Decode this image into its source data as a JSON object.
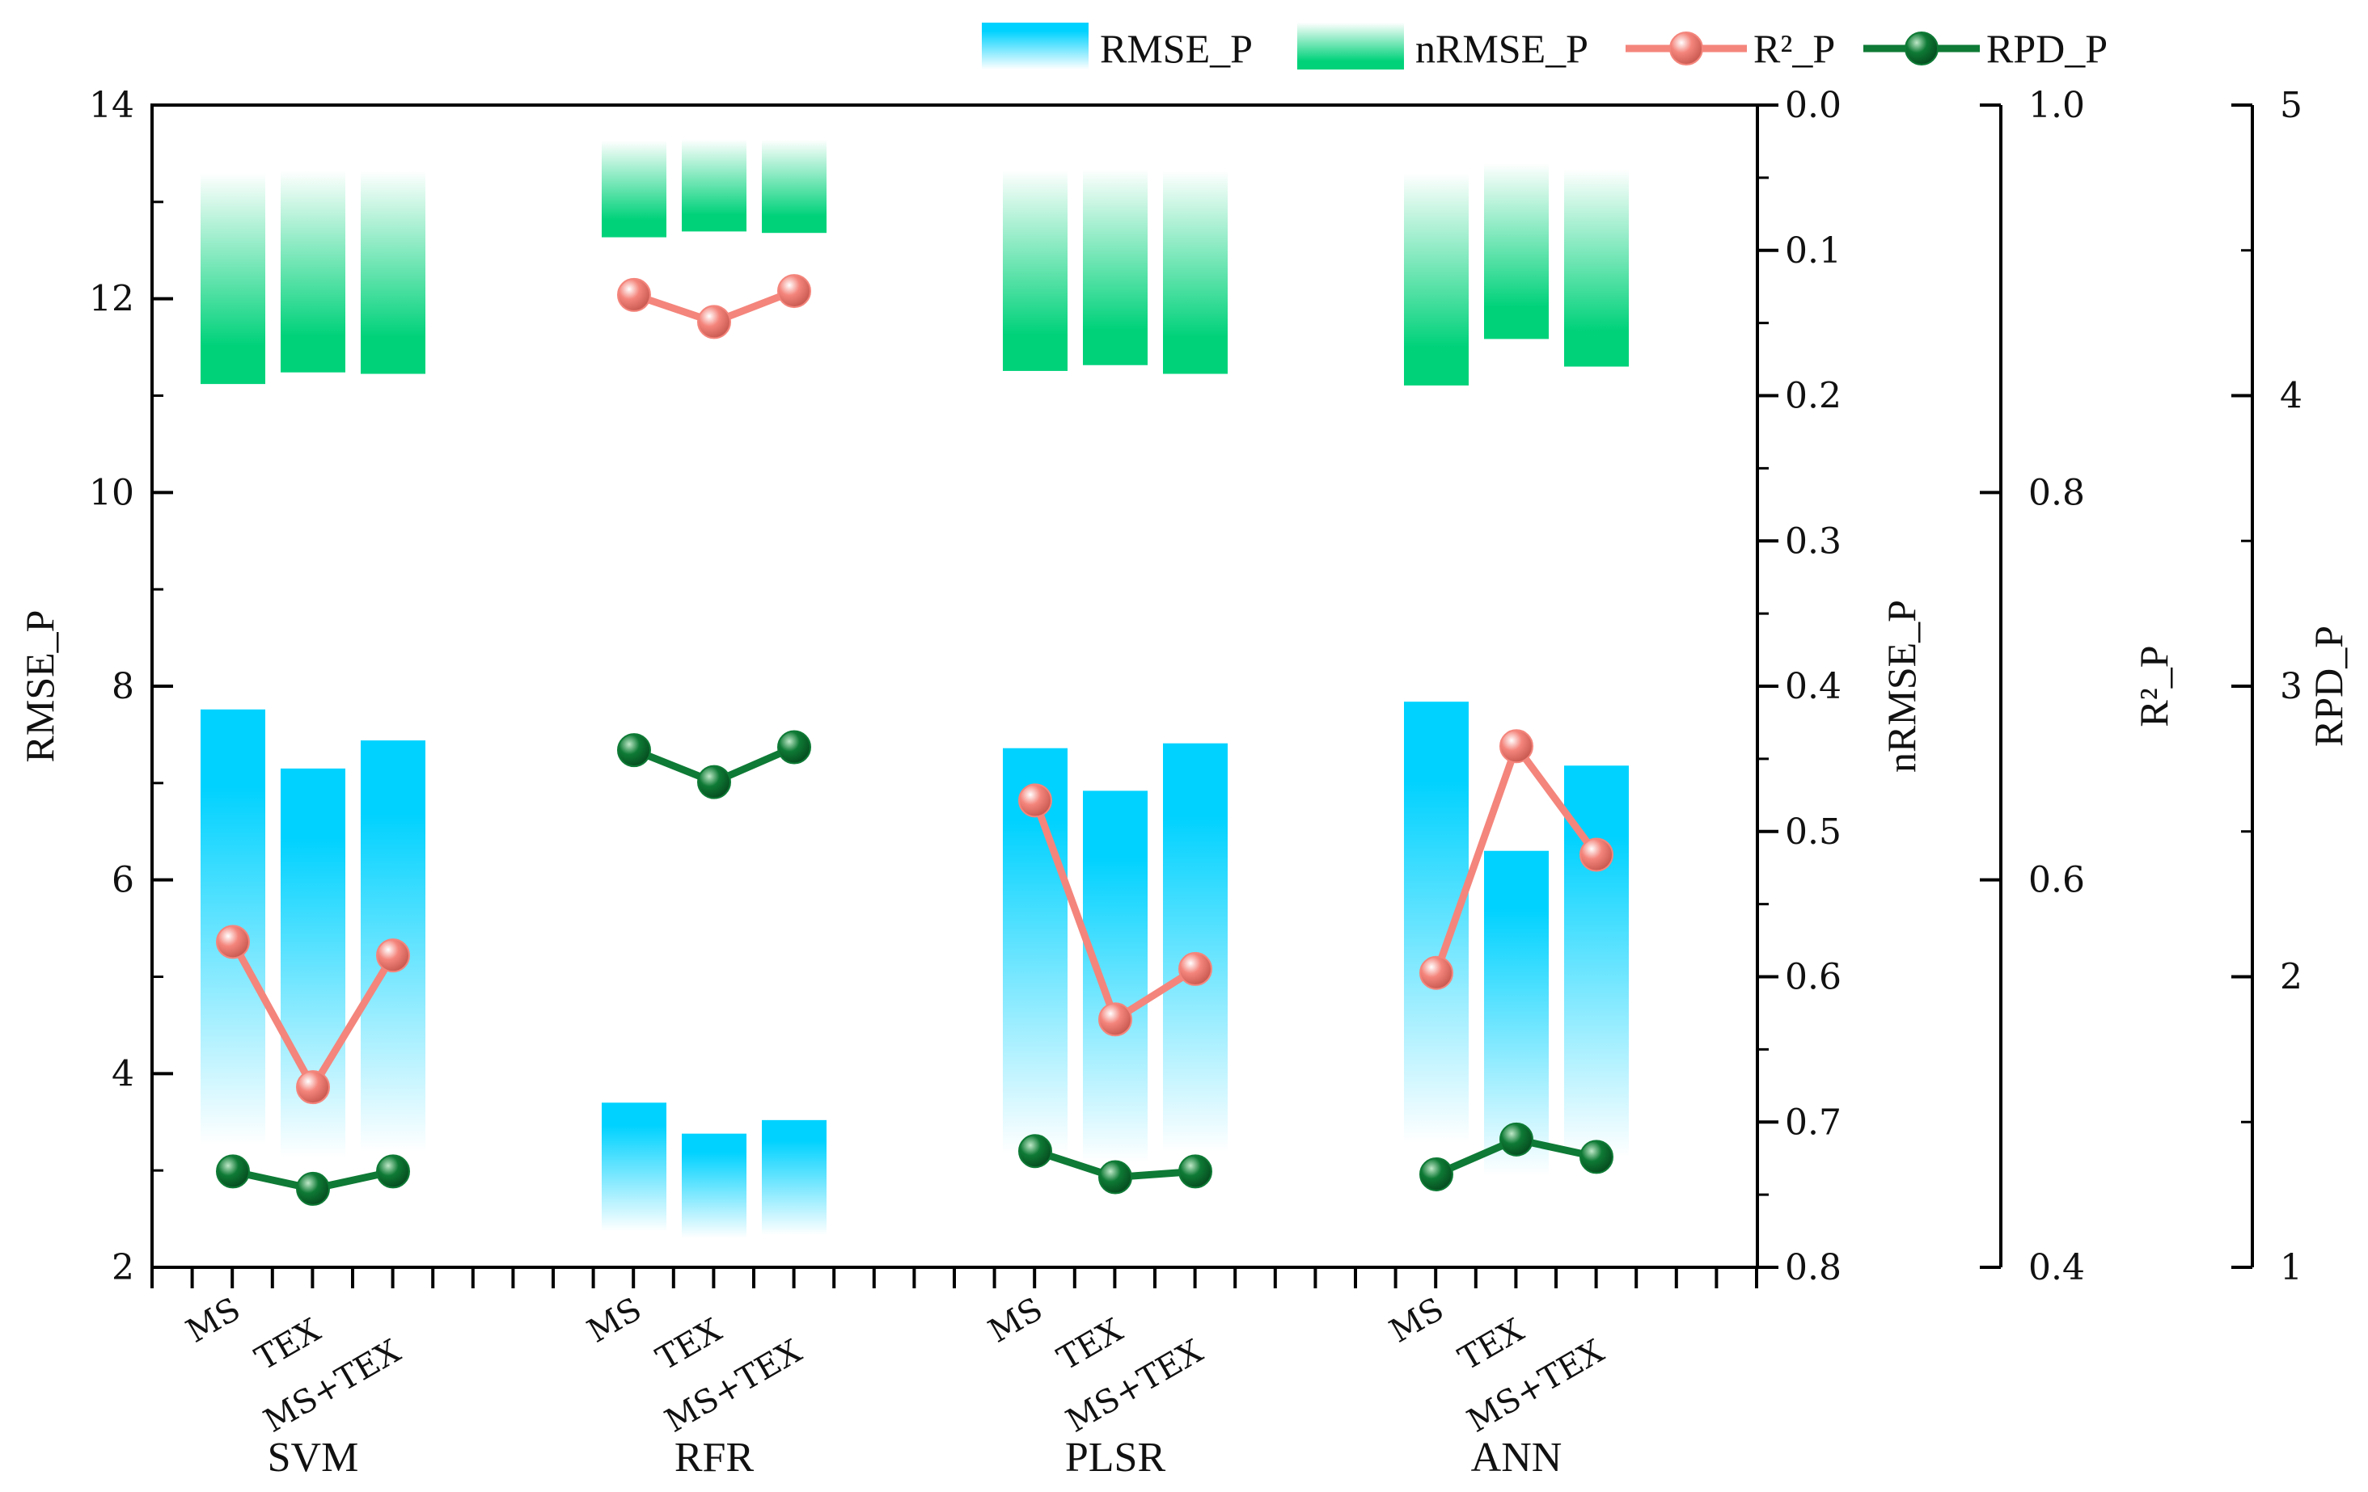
{
  "chart_data": {
    "type": "bar",
    "groups": [
      "SVM",
      "RFR",
      "PLSR",
      "ANN"
    ],
    "subcategories": [
      "MS",
      "TEX",
      "MS+TEX"
    ],
    "series": [
      {
        "name": "RMSE_P",
        "axis": "left",
        "kind": "bar",
        "values": [
          [
            7.76,
            7.15,
            7.44
          ],
          [
            3.7,
            3.38,
            3.52
          ],
          [
            7.36,
            6.92,
            7.41
          ],
          [
            7.84,
            6.3,
            7.18
          ]
        ]
      },
      {
        "name": "nRMSE_P",
        "axis": "nrmse",
        "kind": "bar",
        "values": [
          [
            0.192,
            0.184,
            0.185
          ],
          [
            0.091,
            0.087,
            0.088
          ],
          [
            0.183,
            0.179,
            0.185
          ],
          [
            0.193,
            0.161,
            0.18
          ]
        ]
      },
      {
        "name": "R²_P",
        "axis": "r2",
        "kind": "line",
        "values": [
          [
            0.568,
            0.493,
            0.561
          ],
          [
            0.902,
            0.888,
            0.904
          ],
          [
            0.641,
            0.528,
            0.554
          ],
          [
            0.552,
            0.669,
            0.613
          ]
        ]
      },
      {
        "name": "RPD_P",
        "axis": "rpd",
        "kind": "line",
        "values": [
          [
            1.33,
            1.27,
            1.33
          ],
          [
            2.78,
            2.67,
            2.79
          ],
          [
            1.4,
            1.31,
            1.33
          ],
          [
            1.32,
            1.44,
            1.38
          ]
        ]
      }
    ],
    "legend": [
      "RMSE_P",
      "nRMSE_P",
      "R²_P",
      "RPD_P"
    ],
    "legend_position": "top-right",
    "axes": {
      "left": {
        "label": "RMSE_P",
        "min": 2,
        "max": 14,
        "ticks": [
          "2",
          "4",
          "6",
          "8",
          "10",
          "12",
          "14"
        ]
      },
      "nrmse": {
        "label": "nRMSE_P",
        "min": 0.0,
        "max": 0.8,
        "inverted": true,
        "ticks": [
          "0.0",
          "0.1",
          "0.2",
          "0.3",
          "0.4",
          "0.5",
          "0.6",
          "0.7",
          "0.8"
        ]
      },
      "r2": {
        "label": "R²_P",
        "min": 0.4,
        "max": 1.0,
        "ticks": [
          "0.4",
          "0.6",
          "0.8",
          "1.0"
        ]
      },
      "rpd": {
        "label": "RPD_P",
        "min": 1,
        "max": 5,
        "ticks": [
          "1",
          "2",
          "3",
          "4",
          "5"
        ]
      }
    },
    "colors": {
      "rmse": "#00d2ff",
      "nrmse": "#00d27a",
      "r2": "#f4857c",
      "rpd": "#0e7a35",
      "axis": "#000000"
    }
  }
}
